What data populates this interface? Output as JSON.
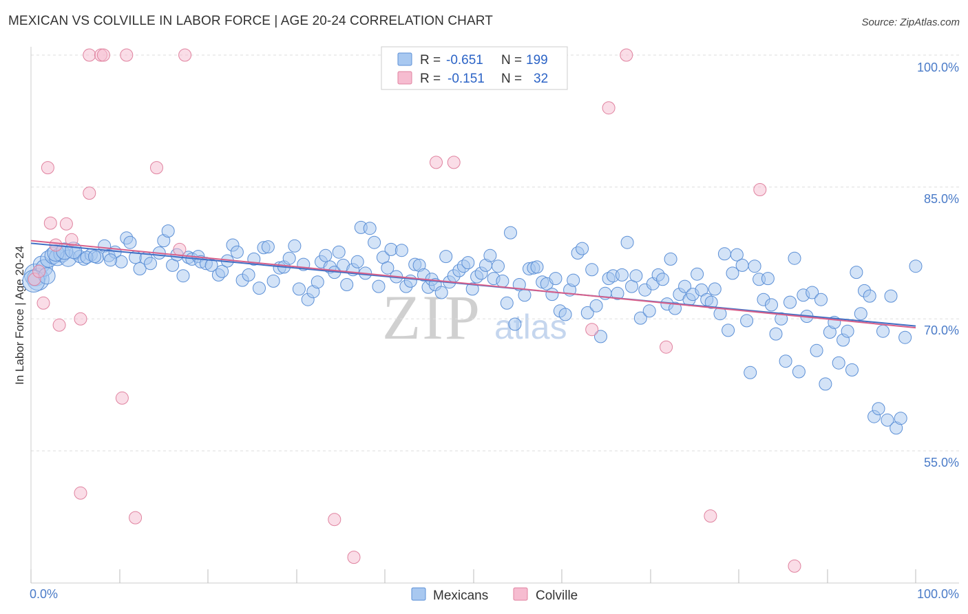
{
  "chart_data": {
    "type": "scatter",
    "title": "MEXICAN VS COLVILLE IN LABOR FORCE | AGE 20-24 CORRELATION CHART",
    "source": "Source: ZipAtlas.com",
    "xlabel": "",
    "ylabel": "In Labor Force | Age 20-24",
    "xlim": [
      0,
      100
    ],
    "ylim": [
      41,
      101
    ],
    "x_tick_labels": {
      "left": "0.0%",
      "right": "100.0%"
    },
    "y_ticks": [
      {
        "value": 55,
        "label": "55.0%"
      },
      {
        "value": 70,
        "label": "70.0%"
      },
      {
        "value": 85,
        "label": "85.0%"
      },
      {
        "value": 100,
        "label": "100.0%"
      }
    ],
    "grid": true,
    "watermark": {
      "main": "ZIP",
      "sub": "atlas"
    },
    "legend_stats": [
      {
        "r_label": "R =",
        "r_value": "-0.651",
        "n_label": "N =",
        "n_value": "199"
      },
      {
        "r_label": "R =",
        "r_value": "-0.151",
        "n_label": "N =",
        "n_value": "32"
      }
    ],
    "legend_bottom": [
      "Mexicans",
      "Colville"
    ],
    "colors": {
      "mexicans_fill": "#a8c8f0",
      "mexicans_stroke": "#5b8fd6",
      "colville_fill": "#f6bcd0",
      "colville_stroke": "#e0829f",
      "trend_blue": "#3f6fc4",
      "trend_pink": "#d8608a"
    },
    "series": [
      {
        "name": "Mexicans",
        "trend": [
          [
            0,
            78.6
          ],
          [
            100,
            69.2
          ]
        ],
        "points": [
          [
            0.5,
            75.0
          ],
          [
            0.8,
            74.5
          ],
          [
            1.2,
            76.2
          ],
          [
            1.5,
            75.8
          ],
          [
            2.0,
            76.8
          ],
          [
            2.5,
            77.2
          ],
          [
            3.0,
            77.0
          ],
          [
            3.5,
            77.4
          ],
          [
            4.2,
            76.9
          ],
          [
            5.0,
            77.5
          ],
          [
            5.5,
            77.1
          ],
          [
            6.0,
            76.8
          ],
          [
            6.8,
            77.3
          ],
          [
            7.5,
            77.0
          ],
          [
            8.3,
            78.3
          ],
          [
            8.8,
            77.2
          ],
          [
            9.5,
            77.6
          ],
          [
            10.2,
            76.5
          ],
          [
            10.8,
            79.2
          ],
          [
            11.2,
            78.7
          ],
          [
            11.8,
            77.0
          ],
          [
            12.3,
            75.7
          ],
          [
            13.0,
            76.9
          ],
          [
            13.5,
            76.3
          ],
          [
            14.5,
            77.5
          ],
          [
            15.0,
            78.9
          ],
          [
            15.5,
            80.0
          ],
          [
            16.0,
            76.1
          ],
          [
            16.5,
            77.3
          ],
          [
            17.2,
            74.9
          ],
          [
            17.8,
            77.0
          ],
          [
            18.2,
            76.8
          ],
          [
            18.9,
            77.1
          ],
          [
            19.2,
            76.5
          ],
          [
            19.8,
            76.3
          ],
          [
            20.4,
            76.1
          ],
          [
            21.2,
            75.0
          ],
          [
            21.6,
            75.4
          ],
          [
            22.2,
            76.6
          ],
          [
            22.8,
            78.4
          ],
          [
            23.3,
            77.6
          ],
          [
            23.9,
            74.4
          ],
          [
            24.6,
            75.0
          ],
          [
            25.2,
            76.8
          ],
          [
            25.8,
            73.5
          ],
          [
            26.3,
            78.1
          ],
          [
            26.8,
            78.2
          ],
          [
            27.4,
            74.3
          ],
          [
            28.1,
            75.8
          ],
          [
            28.6,
            75.9
          ],
          [
            29.2,
            76.9
          ],
          [
            29.8,
            78.3
          ],
          [
            30.3,
            73.4
          ],
          [
            30.8,
            76.2
          ],
          [
            31.3,
            72.2
          ],
          [
            31.9,
            73.1
          ],
          [
            32.4,
            74.2
          ],
          [
            32.8,
            76.5
          ],
          [
            33.3,
            77.2
          ],
          [
            33.8,
            75.9
          ],
          [
            34.3,
            75.3
          ],
          [
            34.8,
            77.6
          ],
          [
            35.3,
            76.1
          ],
          [
            35.7,
            73.9
          ],
          [
            36.4,
            75.6
          ],
          [
            36.9,
            76.5
          ],
          [
            37.3,
            80.4
          ],
          [
            37.8,
            75.2
          ],
          [
            38.3,
            80.3
          ],
          [
            38.8,
            78.7
          ],
          [
            39.3,
            73.7
          ],
          [
            39.8,
            77.0
          ],
          [
            40.3,
            75.8
          ],
          [
            40.7,
            77.9
          ],
          [
            41.3,
            74.8
          ],
          [
            41.9,
            77.8
          ],
          [
            42.4,
            73.7
          ],
          [
            42.9,
            74.3
          ],
          [
            43.4,
            76.2
          ],
          [
            43.9,
            76.1
          ],
          [
            44.4,
            75.0
          ],
          [
            44.9,
            73.6
          ],
          [
            45.3,
            74.5
          ],
          [
            45.7,
            73.9
          ],
          [
            46.4,
            73.0
          ],
          [
            46.9,
            77.1
          ],
          [
            47.3,
            74.2
          ],
          [
            47.8,
            74.9
          ],
          [
            48.4,
            75.5
          ],
          [
            48.9,
            76.0
          ],
          [
            49.4,
            76.4
          ],
          [
            49.9,
            73.4
          ],
          [
            50.4,
            74.8
          ],
          [
            50.9,
            75.2
          ],
          [
            51.4,
            76.1
          ],
          [
            51.9,
            77.2
          ],
          [
            52.3,
            74.6
          ],
          [
            52.8,
            76.0
          ],
          [
            53.3,
            74.3
          ],
          [
            53.8,
            71.8
          ],
          [
            54.2,
            79.8
          ],
          [
            54.7,
            69.4
          ],
          [
            55.2,
            73.9
          ],
          [
            55.8,
            72.7
          ],
          [
            56.3,
            75.7
          ],
          [
            56.8,
            75.8
          ],
          [
            57.2,
            75.9
          ],
          [
            57.8,
            74.2
          ],
          [
            58.3,
            74.0
          ],
          [
            58.9,
            72.8
          ],
          [
            59.3,
            74.6
          ],
          [
            59.8,
            70.9
          ],
          [
            60.4,
            70.5
          ],
          [
            60.9,
            73.3
          ],
          [
            61.3,
            74.4
          ],
          [
            61.8,
            77.5
          ],
          [
            62.3,
            78.0
          ],
          [
            62.9,
            70.7
          ],
          [
            63.4,
            75.6
          ],
          [
            63.9,
            71.5
          ],
          [
            64.4,
            68.0
          ],
          [
            64.9,
            72.9
          ],
          [
            65.3,
            74.6
          ],
          [
            65.8,
            74.9
          ],
          [
            66.3,
            72.9
          ],
          [
            66.8,
            75.0
          ],
          [
            67.4,
            78.7
          ],
          [
            67.9,
            73.7
          ],
          [
            68.4,
            74.9
          ],
          [
            68.9,
            70.1
          ],
          [
            69.4,
            73.3
          ],
          [
            69.9,
            70.9
          ],
          [
            70.3,
            74.0
          ],
          [
            70.9,
            75.0
          ],
          [
            71.4,
            74.5
          ],
          [
            71.9,
            71.7
          ],
          [
            72.3,
            76.8
          ],
          [
            72.8,
            71.2
          ],
          [
            73.3,
            72.8
          ],
          [
            73.9,
            73.7
          ],
          [
            74.4,
            72.2
          ],
          [
            74.8,
            72.8
          ],
          [
            75.3,
            75.1
          ],
          [
            75.8,
            73.3
          ],
          [
            76.4,
            72.2
          ],
          [
            76.9,
            71.9
          ],
          [
            77.3,
            73.4
          ],
          [
            77.9,
            70.6
          ],
          [
            78.4,
            77.4
          ],
          [
            78.8,
            68.7
          ],
          [
            79.3,
            75.2
          ],
          [
            79.8,
            77.3
          ],
          [
            80.4,
            76.1
          ],
          [
            80.9,
            69.8
          ],
          [
            81.3,
            63.9
          ],
          [
            81.8,
            76.0
          ],
          [
            82.3,
            74.5
          ],
          [
            82.8,
            72.2
          ],
          [
            83.3,
            74.6
          ],
          [
            83.7,
            71.6
          ],
          [
            84.2,
            68.3
          ],
          [
            84.8,
            70.0
          ],
          [
            85.3,
            65.2
          ],
          [
            85.8,
            71.9
          ],
          [
            86.3,
            76.9
          ],
          [
            86.8,
            64.0
          ],
          [
            87.3,
            72.7
          ],
          [
            87.7,
            70.3
          ],
          [
            88.3,
            73.0
          ],
          [
            88.8,
            66.4
          ],
          [
            89.3,
            72.2
          ],
          [
            89.8,
            62.6
          ],
          [
            90.3,
            68.5
          ],
          [
            90.8,
            69.6
          ],
          [
            91.3,
            65.0
          ],
          [
            91.8,
            67.6
          ],
          [
            92.3,
            68.6
          ],
          [
            92.8,
            64.2
          ],
          [
            93.3,
            75.3
          ],
          [
            93.8,
            70.6
          ],
          [
            94.2,
            73.2
          ],
          [
            94.8,
            72.6
          ],
          [
            95.3,
            58.9
          ],
          [
            95.8,
            59.8
          ],
          [
            96.3,
            68.6
          ],
          [
            96.8,
            58.5
          ],
          [
            97.2,
            72.6
          ],
          [
            97.8,
            57.6
          ],
          [
            98.3,
            58.7
          ],
          [
            98.8,
            67.9
          ],
          [
            100.0,
            76.0
          ],
          [
            0.3,
            74.3
          ],
          [
            1.8,
            74.9
          ],
          [
            2.8,
            77.5
          ],
          [
            3.8,
            77.7
          ],
          [
            4.8,
            77.8
          ],
          [
            6.3,
            77.0
          ],
          [
            7.2,
            77.1
          ],
          [
            9.0,
            76.7
          ]
        ]
      },
      {
        "name": "Colville",
        "trend": [
          [
            0,
            78.9
          ],
          [
            100,
            69.0
          ]
        ],
        "points": [
          [
            0.4,
            74.5
          ],
          [
            0.9,
            75.4
          ],
          [
            1.4,
            71.8
          ],
          [
            1.9,
            87.2
          ],
          [
            2.2,
            80.9
          ],
          [
            2.8,
            78.4
          ],
          [
            3.2,
            69.3
          ],
          [
            4.0,
            80.8
          ],
          [
            4.6,
            79.0
          ],
          [
            5.6,
            70.0
          ],
          [
            5.6,
            50.2
          ],
          [
            6.6,
            84.3
          ],
          [
            6.6,
            100.0
          ],
          [
            7.9,
            100.0
          ],
          [
            8.2,
            100.0
          ],
          [
            10.3,
            61.0
          ],
          [
            10.8,
            100.0
          ],
          [
            11.8,
            47.4
          ],
          [
            14.2,
            87.2
          ],
          [
            16.8,
            77.9
          ],
          [
            17.4,
            100.0
          ],
          [
            34.3,
            47.2
          ],
          [
            36.5,
            42.9
          ],
          [
            45.8,
            87.8
          ],
          [
            47.8,
            87.8
          ],
          [
            63.4,
            68.8
          ],
          [
            65.3,
            94.0
          ],
          [
            67.3,
            100.0
          ],
          [
            71.8,
            66.8
          ],
          [
            76.8,
            47.6
          ],
          [
            82.4,
            84.7
          ],
          [
            86.3,
            41.9
          ]
        ]
      }
    ]
  }
}
